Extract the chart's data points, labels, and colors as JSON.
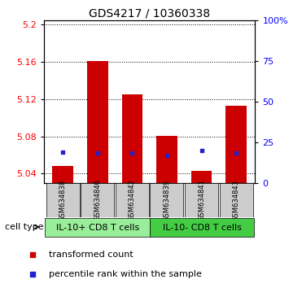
{
  "title": "GDS4217 / 10360338",
  "samples": [
    "GSM634838",
    "GSM634840",
    "GSM634842",
    "GSM634839",
    "GSM634841",
    "GSM634843"
  ],
  "red_values": [
    5.048,
    5.161,
    5.125,
    5.081,
    5.043,
    5.113
  ],
  "blue_values": [
    5.063,
    5.062,
    5.062,
    5.06,
    5.065,
    5.062
  ],
  "ylim": [
    5.03,
    5.205
  ],
  "yticks_left": [
    5.04,
    5.08,
    5.12,
    5.16,
    5.2
  ],
  "ytick_labels_left": [
    "5.04",
    "5.08",
    "5.12",
    "5.16",
    "5.2"
  ],
  "yticks_right_pct": [
    0,
    25,
    50,
    75,
    100
  ],
  "ytick_labels_right": [
    "0",
    "25",
    "50",
    "75",
    "100%"
  ],
  "groups": [
    {
      "label": "IL-10+ CD8 T cells",
      "color": "#99ee99",
      "indices": [
        0,
        1,
        2
      ]
    },
    {
      "label": "IL-10- CD8 T cells",
      "color": "#44cc44",
      "indices": [
        3,
        4,
        5
      ]
    }
  ],
  "cell_type_label": "cell type",
  "legend_red_label": "transformed count",
  "legend_blue_label": "percentile rank within the sample",
  "bar_width": 0.6,
  "bar_base": 5.03,
  "red_color": "#cc0000",
  "blue_color": "#2222cc",
  "sample_box_color": "#cccccc",
  "title_fontsize": 10,
  "tick_fontsize": 8,
  "sample_fontsize": 6,
  "group_fontsize": 8,
  "legend_fontsize": 8
}
